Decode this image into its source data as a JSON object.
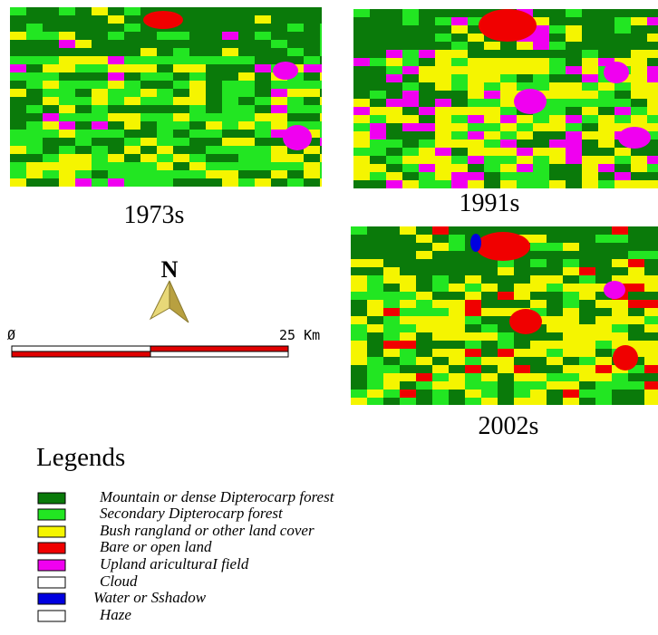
{
  "maps": [
    {
      "label": "1973s"
    },
    {
      "label": "1991s"
    },
    {
      "label": "2002s"
    }
  ],
  "north_arrow": {
    "label": "N"
  },
  "scale_bar": {
    "start_label": "Ø",
    "end_label": "25 Km"
  },
  "legend": {
    "title": "Legends",
    "items": [
      {
        "label": "Mountain or dense Dipterocarp forest",
        "color": "#0a7a0a"
      },
      {
        "label": "Secondary Dipterocarp forest",
        "color": "#22e622"
      },
      {
        "label": "Bush rangland or other land cover",
        "color": "#f5f500"
      },
      {
        "label": "Bare or open land",
        "color": "#f00000"
      },
      {
        "label": "Upland ariculturaI field",
        "color": "#f000f0"
      },
      {
        "label": "Cloud",
        "color": "#ffffff"
      },
      {
        "label": "Water or Sshadow",
        "color": "#0000e0"
      },
      {
        "label": "Haze",
        "color": "#ffffff"
      }
    ]
  }
}
